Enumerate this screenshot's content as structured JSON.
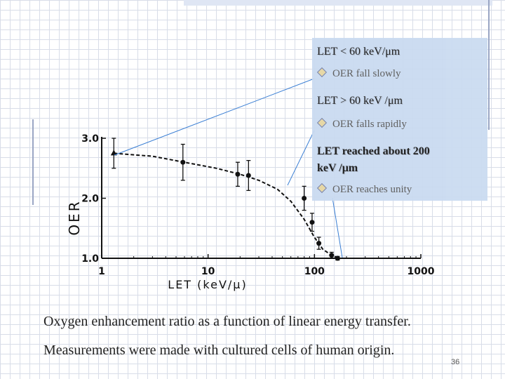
{
  "callout": {
    "h1": "LET < 60 keV/μm",
    "b1": "OER fall slowly",
    "h2": "LET > 60 keV /μm",
    "b2": "OER falls rapidly",
    "h3a": "LET reached about 200",
    "h3b": "keV /μm",
    "b3": "OER reaches unity"
  },
  "caption": {
    "line1": "Oxygen enhancement ratio as a function of linear energy transfer.",
    "line2": "Measurements were made with cultured cells of human origin."
  },
  "slide_number": "36",
  "chart_data": {
    "type": "scatter",
    "xscale": "log",
    "xlim": [
      1,
      1000
    ],
    "ylim": [
      1.0,
      3.0
    ],
    "xticks": [
      1,
      10,
      100,
      1000
    ],
    "xtick_labels": [
      "1",
      "10",
      "100",
      "1000"
    ],
    "yticks": [
      1.0,
      2.0,
      3.0
    ],
    "ytick_labels": [
      "1.0",
      "2.0",
      "3.0"
    ],
    "xlabel": "LET (keV/μ)",
    "ylabel": "OER",
    "points": [
      {
        "x": 1.3,
        "y": 2.75,
        "err": 0.25,
        "marker": "triangle"
      },
      {
        "x": 5.8,
        "y": 2.6,
        "err": 0.3
      },
      {
        "x": 19,
        "y": 2.4,
        "err": 0.2
      },
      {
        "x": 24,
        "y": 2.38,
        "err": 0.25
      },
      {
        "x": 80,
        "y": 2.0,
        "err": 0.2
      },
      {
        "x": 95,
        "y": 1.6,
        "err": 0.15
      },
      {
        "x": 110,
        "y": 1.25,
        "err": 0.1
      },
      {
        "x": 145,
        "y": 1.05,
        "err": 0.05
      },
      {
        "x": 165,
        "y": 1.0,
        "err": 0.03
      }
    ],
    "curve": [
      [
        1.3,
        2.75
      ],
      [
        3,
        2.7
      ],
      [
        6,
        2.6
      ],
      [
        12,
        2.5
      ],
      [
        20,
        2.4
      ],
      [
        30,
        2.3
      ],
      [
        45,
        2.15
      ],
      [
        60,
        1.95
      ],
      [
        80,
        1.65
      ],
      [
        100,
        1.35
      ],
      [
        120,
        1.15
      ],
      [
        145,
        1.05
      ],
      [
        170,
        1.0
      ]
    ],
    "grid": false
  }
}
